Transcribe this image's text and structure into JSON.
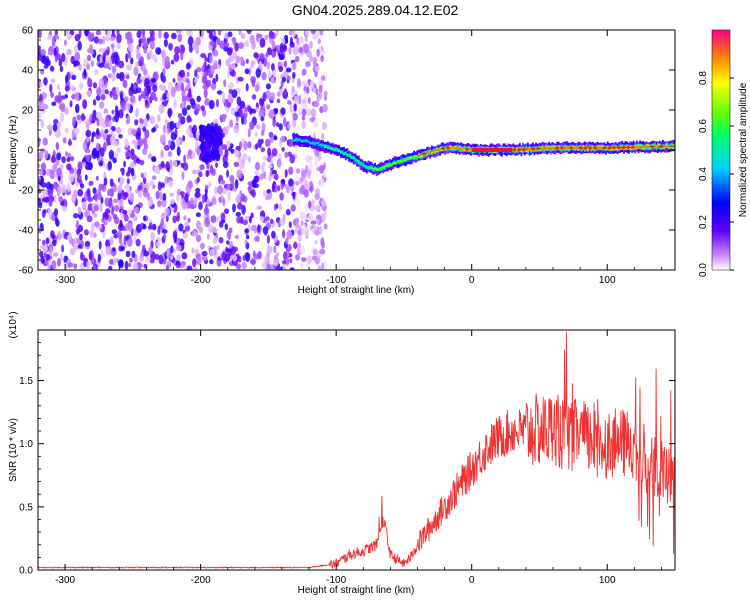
{
  "title": "GN04.2025.289.04.12.E02",
  "chart_data": [
    {
      "type": "heatmap",
      "xlabel": "Height of straight line (km)",
      "ylabel": "Frequency (Hz)",
      "xlim": [
        -320,
        150
      ],
      "ylim": [
        -60,
        60
      ],
      "xticks": [
        -300,
        -200,
        -100,
        0,
        100
      ],
      "yticks": [
        -60,
        -40,
        -20,
        0,
        20,
        40,
        60
      ],
      "colorbar": {
        "label": "Normalized spectral amplitude",
        "range": [
          0,
          1
        ],
        "ticks": [
          "0.0",
          "0.2",
          "0.4",
          "0.6",
          "0.8"
        ]
      },
      "regions": [
        {
          "x_range": [
            -320,
            -115
          ],
          "freq_range": [
            -60,
            60
          ],
          "amplitude": [
            0.0,
            0.2
          ]
        },
        {
          "x_range": [
            -200,
            -185
          ],
          "freq_range": [
            -5,
            12
          ],
          "amplitude": [
            0.15,
            0.25
          ]
        }
      ],
      "ridge": [
        {
          "x": -130,
          "freq": 5
        },
        {
          "x": -120,
          "freq": 4
        },
        {
          "x": -110,
          "freq": 2
        },
        {
          "x": -100,
          "freq": 0
        },
        {
          "x": -90,
          "freq": -3
        },
        {
          "x": -80,
          "freq": -8
        },
        {
          "x": -70,
          "freq": -10
        },
        {
          "x": -60,
          "freq": -7
        },
        {
          "x": -50,
          "freq": -5
        },
        {
          "x": -40,
          "freq": -3
        },
        {
          "x": -30,
          "freq": -1
        },
        {
          "x": -20,
          "freq": 1
        },
        {
          "x": -10,
          "freq": 1
        },
        {
          "x": 0,
          "freq": 0
        },
        {
          "x": 30,
          "freq": 0
        },
        {
          "x": 60,
          "freq": 1
        },
        {
          "x": 100,
          "freq": 1
        },
        {
          "x": 150,
          "freq": 2
        }
      ]
    },
    {
      "type": "line",
      "xlabel": "Height of straight line (km)",
      "ylabel": "SNR (10 * v/v)",
      "yscale_note": "(x10⁴)",
      "xlim": [
        -320,
        150
      ],
      "ylim": [
        0,
        1.9
      ],
      "xticks": [
        -300,
        -200,
        -100,
        0,
        100
      ],
      "yticks": [
        "0.0",
        "0.5",
        "1.0",
        "1.5"
      ],
      "color": "#ee3333",
      "series": [
        {
          "x": [
            -320,
            -280,
            -240,
            -200,
            -160,
            -120,
            -100,
            -90,
            -80,
            -70,
            -65,
            -60,
            -55,
            -50,
            -45,
            -40,
            -30,
            -20,
            -10,
            0,
            10,
            20,
            30,
            40,
            50,
            60,
            70,
            80,
            90,
            100,
            110,
            120,
            130,
            140,
            150
          ],
          "values": [
            0.02,
            0.02,
            0.02,
            0.02,
            0.02,
            0.02,
            0.05,
            0.12,
            0.15,
            0.2,
            0.4,
            0.12,
            0.08,
            0.05,
            0.1,
            0.2,
            0.35,
            0.5,
            0.65,
            0.8,
            0.95,
            1.05,
            1.1,
            1.1,
            1.1,
            1.12,
            1.05,
            1.08,
            1.0,
            1.0,
            1.0,
            1.0,
            0.85,
            0.8,
            0.7
          ]
        }
      ]
    }
  ]
}
